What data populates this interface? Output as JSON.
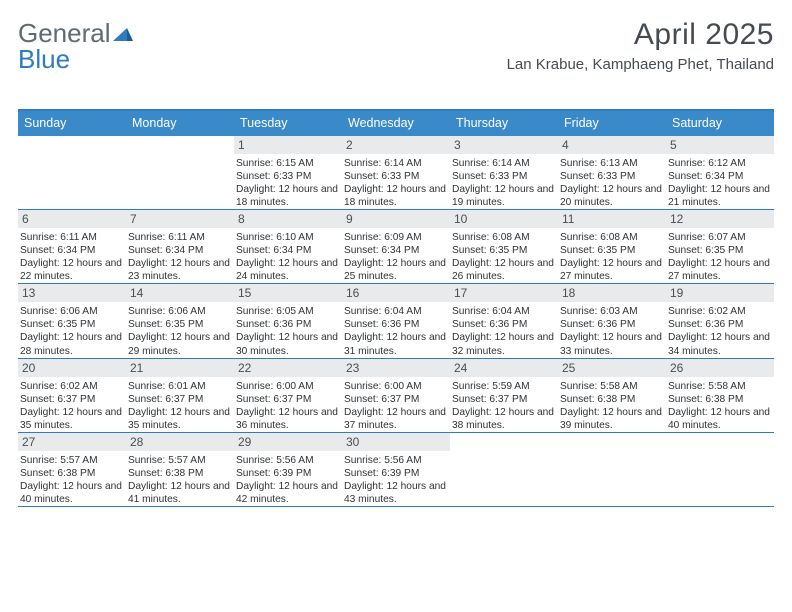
{
  "brand": {
    "part1": "General",
    "part2": "Blue"
  },
  "title": "April 2025",
  "location": "Lan Krabue, Kamphaeng Phet, Thailand",
  "colors": {
    "header_bar": "#3a89c9",
    "rule": "#2f7bbf",
    "daynum_bg": "#e9eaeb",
    "text": "#2f3336",
    "title_text": "#454b50"
  },
  "day_headers": [
    "Sunday",
    "Monday",
    "Tuesday",
    "Wednesday",
    "Thursday",
    "Friday",
    "Saturday"
  ],
  "leading_blanks": 2,
  "days": [
    {
      "n": "1",
      "sunrise": "6:15 AM",
      "sunset": "6:33 PM",
      "daylight": "12 hours and 18 minutes."
    },
    {
      "n": "2",
      "sunrise": "6:14 AM",
      "sunset": "6:33 PM",
      "daylight": "12 hours and 18 minutes."
    },
    {
      "n": "3",
      "sunrise": "6:14 AM",
      "sunset": "6:33 PM",
      "daylight": "12 hours and 19 minutes."
    },
    {
      "n": "4",
      "sunrise": "6:13 AM",
      "sunset": "6:33 PM",
      "daylight": "12 hours and 20 minutes."
    },
    {
      "n": "5",
      "sunrise": "6:12 AM",
      "sunset": "6:34 PM",
      "daylight": "12 hours and 21 minutes."
    },
    {
      "n": "6",
      "sunrise": "6:11 AM",
      "sunset": "6:34 PM",
      "daylight": "12 hours and 22 minutes."
    },
    {
      "n": "7",
      "sunrise": "6:11 AM",
      "sunset": "6:34 PM",
      "daylight": "12 hours and 23 minutes."
    },
    {
      "n": "8",
      "sunrise": "6:10 AM",
      "sunset": "6:34 PM",
      "daylight": "12 hours and 24 minutes."
    },
    {
      "n": "9",
      "sunrise": "6:09 AM",
      "sunset": "6:34 PM",
      "daylight": "12 hours and 25 minutes."
    },
    {
      "n": "10",
      "sunrise": "6:08 AM",
      "sunset": "6:35 PM",
      "daylight": "12 hours and 26 minutes."
    },
    {
      "n": "11",
      "sunrise": "6:08 AM",
      "sunset": "6:35 PM",
      "daylight": "12 hours and 27 minutes."
    },
    {
      "n": "12",
      "sunrise": "6:07 AM",
      "sunset": "6:35 PM",
      "daylight": "12 hours and 27 minutes."
    },
    {
      "n": "13",
      "sunrise": "6:06 AM",
      "sunset": "6:35 PM",
      "daylight": "12 hours and 28 minutes."
    },
    {
      "n": "14",
      "sunrise": "6:06 AM",
      "sunset": "6:35 PM",
      "daylight": "12 hours and 29 minutes."
    },
    {
      "n": "15",
      "sunrise": "6:05 AM",
      "sunset": "6:36 PM",
      "daylight": "12 hours and 30 minutes."
    },
    {
      "n": "16",
      "sunrise": "6:04 AM",
      "sunset": "6:36 PM",
      "daylight": "12 hours and 31 minutes."
    },
    {
      "n": "17",
      "sunrise": "6:04 AM",
      "sunset": "6:36 PM",
      "daylight": "12 hours and 32 minutes."
    },
    {
      "n": "18",
      "sunrise": "6:03 AM",
      "sunset": "6:36 PM",
      "daylight": "12 hours and 33 minutes."
    },
    {
      "n": "19",
      "sunrise": "6:02 AM",
      "sunset": "6:36 PM",
      "daylight": "12 hours and 34 minutes."
    },
    {
      "n": "20",
      "sunrise": "6:02 AM",
      "sunset": "6:37 PM",
      "daylight": "12 hours and 35 minutes."
    },
    {
      "n": "21",
      "sunrise": "6:01 AM",
      "sunset": "6:37 PM",
      "daylight": "12 hours and 35 minutes."
    },
    {
      "n": "22",
      "sunrise": "6:00 AM",
      "sunset": "6:37 PM",
      "daylight": "12 hours and 36 minutes."
    },
    {
      "n": "23",
      "sunrise": "6:00 AM",
      "sunset": "6:37 PM",
      "daylight": "12 hours and 37 minutes."
    },
    {
      "n": "24",
      "sunrise": "5:59 AM",
      "sunset": "6:37 PM",
      "daylight": "12 hours and 38 minutes."
    },
    {
      "n": "25",
      "sunrise": "5:58 AM",
      "sunset": "6:38 PM",
      "daylight": "12 hours and 39 minutes."
    },
    {
      "n": "26",
      "sunrise": "5:58 AM",
      "sunset": "6:38 PM",
      "daylight": "12 hours and 40 minutes."
    },
    {
      "n": "27",
      "sunrise": "5:57 AM",
      "sunset": "6:38 PM",
      "daylight": "12 hours and 40 minutes."
    },
    {
      "n": "28",
      "sunrise": "5:57 AM",
      "sunset": "6:38 PM",
      "daylight": "12 hours and 41 minutes."
    },
    {
      "n": "29",
      "sunrise": "5:56 AM",
      "sunset": "6:39 PM",
      "daylight": "12 hours and 42 minutes."
    },
    {
      "n": "30",
      "sunrise": "5:56 AM",
      "sunset": "6:39 PM",
      "daylight": "12 hours and 43 minutes."
    }
  ],
  "labels": {
    "sunrise": "Sunrise:",
    "sunset": "Sunset:",
    "daylight": "Daylight:"
  }
}
